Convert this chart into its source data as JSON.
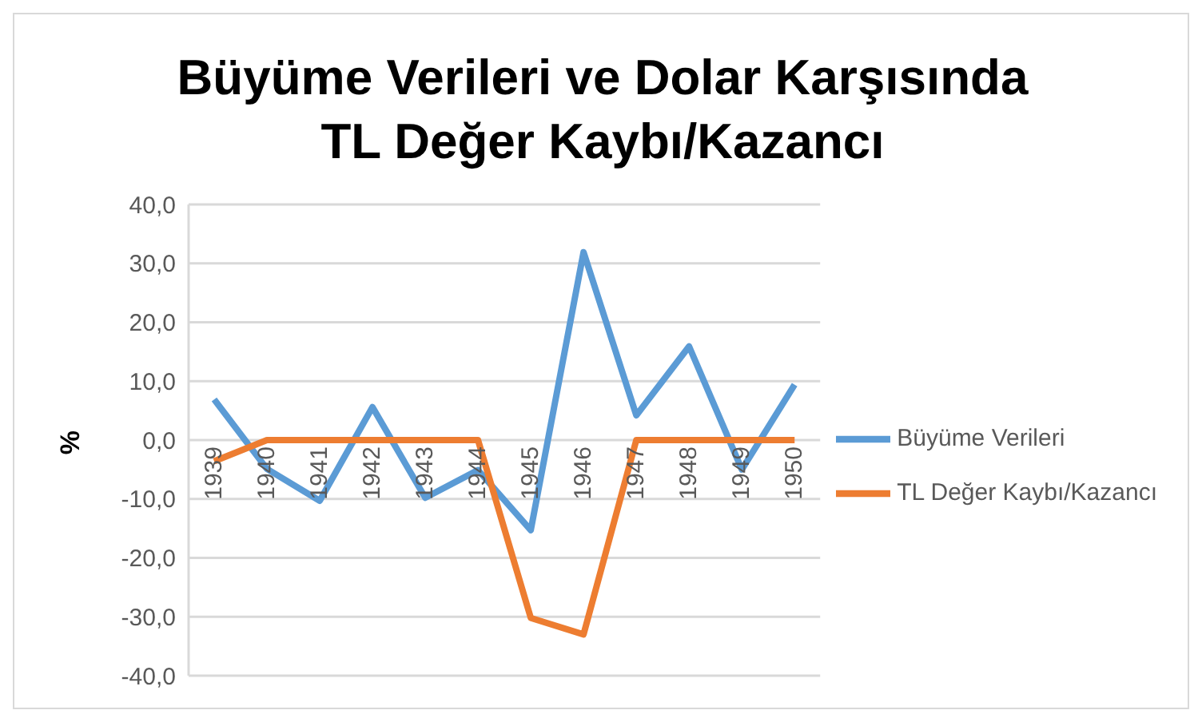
{
  "chart_data": {
    "type": "line",
    "title": "Büyüme Verileri ve Dolar Karşısında TL Değer Kaybı/Kazancı",
    "ylabel": "%",
    "categories": [
      "1939",
      "1940",
      "1941",
      "1942",
      "1943",
      "1944",
      "1945",
      "1946",
      "1947",
      "1948",
      "1949",
      "1950"
    ],
    "series": [
      {
        "name": "Büyüme Verileri",
        "color": "#5b9bd5",
        "values": [
          6.9,
          -4.9,
          -10.3,
          5.6,
          -9.8,
          -5.1,
          -15.3,
          31.9,
          4.2,
          15.9,
          -5.0,
          9.4
        ]
      },
      {
        "name": "TL Değer Kaybı/Kazancı",
        "color": "#ed7d31",
        "values": [
          -3.6,
          0,
          0,
          0,
          0,
          0,
          -30.2,
          -33.0,
          0,
          0,
          0,
          0
        ]
      }
    ],
    "ylim": [
      -40,
      40
    ],
    "yticks": [
      {
        "value": -40,
        "label": "-40,0"
      },
      {
        "value": -30,
        "label": "-30,0"
      },
      {
        "value": -20,
        "label": "-20,0"
      },
      {
        "value": -10,
        "label": "-10,0"
      },
      {
        "value": 0,
        "label": "0,0"
      },
      {
        "value": 10,
        "label": "10,0"
      },
      {
        "value": 20,
        "label": "20,0"
      },
      {
        "value": 30,
        "label": "30,0"
      },
      {
        "value": 40,
        "label": "40,0"
      }
    ],
    "grid": "y",
    "legend": "right",
    "marker": "none",
    "line_style": "solid"
  }
}
